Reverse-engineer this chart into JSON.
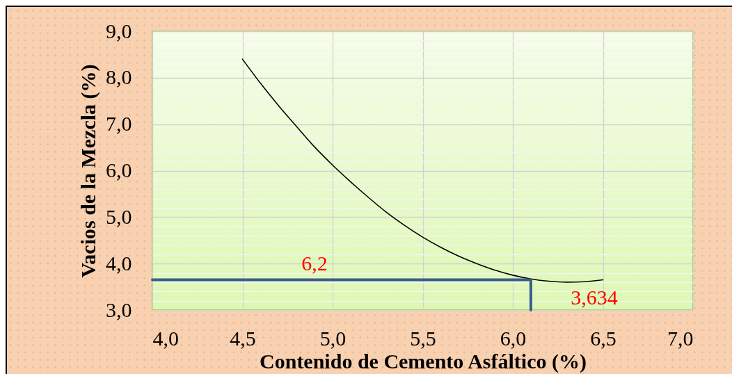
{
  "chart_data": {
    "type": "line",
    "xlabel": "Contenido de Cemento Asfáltico (%)",
    "ylabel": "Vacios de la Mezcla (%)",
    "xlim": [
      4.0,
      7.0
    ],
    "ylim": [
      3.0,
      9.0
    ],
    "xticks": [
      {
        "value": 4,
        "label": "4,0"
      },
      {
        "value": 4.5,
        "label": "4,5"
      },
      {
        "value": 5,
        "label": "5,0"
      },
      {
        "value": 5.5,
        "label": "5,5"
      },
      {
        "value": 6,
        "label": "6,0"
      },
      {
        "value": 6.5,
        "label": "6,5"
      },
      {
        "value": 7,
        "label": "7,0"
      }
    ],
    "yticks": [
      {
        "value": 3,
        "label": "3,0"
      },
      {
        "value": 3.2,
        "label": null
      },
      {
        "value": 3.4,
        "label": null
      },
      {
        "value": 3.6,
        "label": null
      },
      {
        "value": 3.8,
        "label": null
      },
      {
        "value": 4,
        "label": "4,0"
      },
      {
        "value": 4.2,
        "label": null
      },
      {
        "value": 4.4,
        "label": null
      },
      {
        "value": 4.6,
        "label": null
      },
      {
        "value": 4.8,
        "label": null
      },
      {
        "value": 5,
        "label": "5,0"
      },
      {
        "value": 5.2,
        "label": null
      },
      {
        "value": 5.4,
        "label": null
      },
      {
        "value": 5.6,
        "label": null
      },
      {
        "value": 5.8,
        "label": null
      },
      {
        "value": 6,
        "label": "6,0"
      },
      {
        "value": 6.2,
        "label": null
      },
      {
        "value": 6.4,
        "label": null
      },
      {
        "value": 6.6,
        "label": null
      },
      {
        "value": 6.8,
        "label": null
      },
      {
        "value": 7,
        "label": "7,0"
      },
      {
        "value": 7.2,
        "label": null
      },
      {
        "value": 7.4,
        "label": null
      },
      {
        "value": 7.6,
        "label": null
      },
      {
        "value": 7.8,
        "label": null
      },
      {
        "value": 8,
        "label": "8,0"
      },
      {
        "value": 8.2,
        "label": null
      },
      {
        "value": 8.4,
        "label": null
      },
      {
        "value": 8.6,
        "label": null
      },
      {
        "value": 8.8,
        "label": null
      },
      {
        "value": 9,
        "label": "9,0"
      }
    ],
    "grid": true,
    "series": [
      {
        "color": "#000000",
        "x": [
          4.5,
          4.6,
          4.7,
          4.8,
          4.9,
          5.0,
          5.1,
          5.2,
          5.3,
          5.4,
          5.5,
          5.6,
          5.7,
          5.8,
          5.9,
          6.0,
          6.1,
          6.2,
          6.3,
          6.4,
          6.5
        ],
        "values": [
          8.4,
          7.88,
          7.4,
          6.95,
          6.51,
          6.12,
          5.76,
          5.42,
          5.1,
          4.82,
          4.57,
          4.35,
          4.16,
          4.0,
          3.86,
          3.75,
          3.67,
          3.62,
          3.6,
          3.61,
          3.65
        ]
      },
      {
        "color": "#3b5b8c",
        "x": [
          4.0,
          6.1,
          6.1
        ],
        "values": [
          3.65,
          3.65,
          3.0
        ]
      }
    ],
    "annotations": [
      "6,2",
      "3,634"
    ]
  }
}
